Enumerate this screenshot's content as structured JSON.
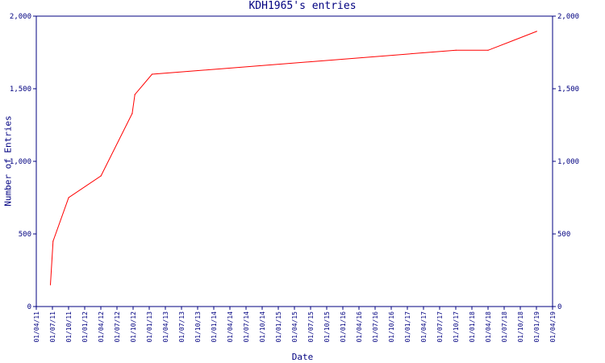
{
  "chart_data": {
    "type": "line",
    "title": "KDH1965's entries",
    "xlabel": "Date",
    "ylabel": "Number of Entries",
    "ylim": [
      0,
      2000
    ],
    "yticks": [
      0,
      500,
      1000,
      1500,
      2000
    ],
    "ytick_labels": [
      "0",
      "500",
      "1,000",
      "1,500",
      "2,000"
    ],
    "xlim": [
      "2011-04-01",
      "2019-04-01"
    ],
    "xtick_labels": [
      "01/04/11",
      "01/07/11",
      "01/10/11",
      "01/01/12",
      "01/04/12",
      "01/07/12",
      "01/10/12",
      "01/01/13",
      "01/04/13",
      "01/07/13",
      "01/10/13",
      "01/01/14",
      "01/04/14",
      "01/07/14",
      "01/10/14",
      "01/01/15",
      "01/04/15",
      "01/07/15",
      "01/10/15",
      "01/01/16",
      "01/04/16",
      "01/07/16",
      "01/10/16",
      "01/01/17",
      "01/04/17",
      "01/07/17",
      "01/10/17",
      "01/01/18",
      "01/04/18",
      "01/07/18",
      "01/10/18",
      "01/01/19",
      "01/04/19"
    ],
    "grid": false,
    "series": [
      {
        "color": "#ff0000",
        "x": [
          "2011-06-20",
          "2011-07-05",
          "2011-10-01",
          "2012-04-01",
          "2012-09-25",
          "2012-10-10",
          "2013-01-15",
          "2017-10-01",
          "2018-04-01",
          "2019-01-01"
        ],
        "y": [
          150,
          450,
          750,
          900,
          1330,
          1460,
          1600,
          1765,
          1765,
          1895
        ]
      }
    ]
  }
}
